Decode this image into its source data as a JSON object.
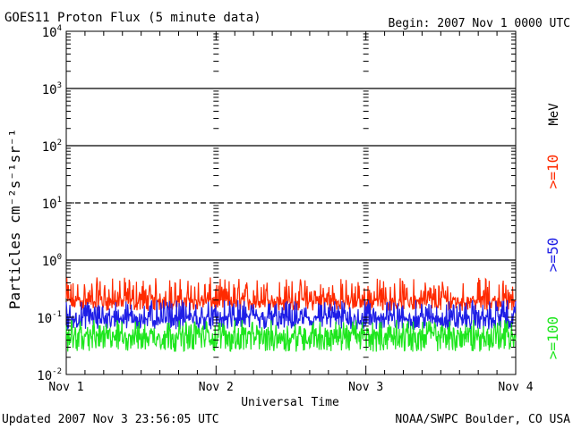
{
  "header": {
    "title": "GOES11 Proton Flux (5 minute data)",
    "begin": "Begin: 2007 Nov 1 0000 UTC"
  },
  "footer": {
    "updated": "Updated 2007 Nov  3 23:56:05 UTC",
    "credit": "NOAA/SWPC Boulder, CO USA"
  },
  "chart_data": {
    "type": "line",
    "title": "GOES11 Proton Flux (5 minute data)",
    "xlabel": "Universal Time",
    "ylabel": "Particles cm⁻²s⁻¹sr⁻¹",
    "x_tick_labels": [
      "Nov 1",
      "Nov 2",
      "Nov 3",
      "Nov 4"
    ],
    "xlim_days": [
      0,
      3
    ],
    "y_scale": "log",
    "ylim": [
      0.01,
      10000
    ],
    "y_tick_labels": [
      {
        "base": "10",
        "exp": "-2"
      },
      {
        "base": "10",
        "exp": "-1"
      },
      {
        "base": "10",
        "exp": "0"
      },
      {
        "base": "10",
        "exp": "1"
      },
      {
        "base": "10",
        "exp": "2"
      },
      {
        "base": "10",
        "exp": "3"
      },
      {
        "base": "10",
        "exp": "4"
      }
    ],
    "reference_lines": [
      {
        "y": 1000,
        "style": "solid"
      },
      {
        "y": 100,
        "style": "solid"
      },
      {
        "y": 10,
        "style": "dashed"
      },
      {
        "y": 1,
        "style": "solid"
      }
    ],
    "unit_label": "MeV",
    "unit_color": "#000000",
    "series": [
      {
        "name": ">=10",
        "color": "#ff2a00",
        "typical": 0.2,
        "low": 0.13,
        "high": 0.5
      },
      {
        "name": ">=50",
        "color": "#1e1ee6",
        "typical": 0.1,
        "low": 0.06,
        "high": 0.2
      },
      {
        "name": ">=100",
        "color": "#1ee61e",
        "typical": 0.05,
        "low": 0.025,
        "high": 0.09
      }
    ],
    "grid": false,
    "legend": "right, vertical"
  }
}
